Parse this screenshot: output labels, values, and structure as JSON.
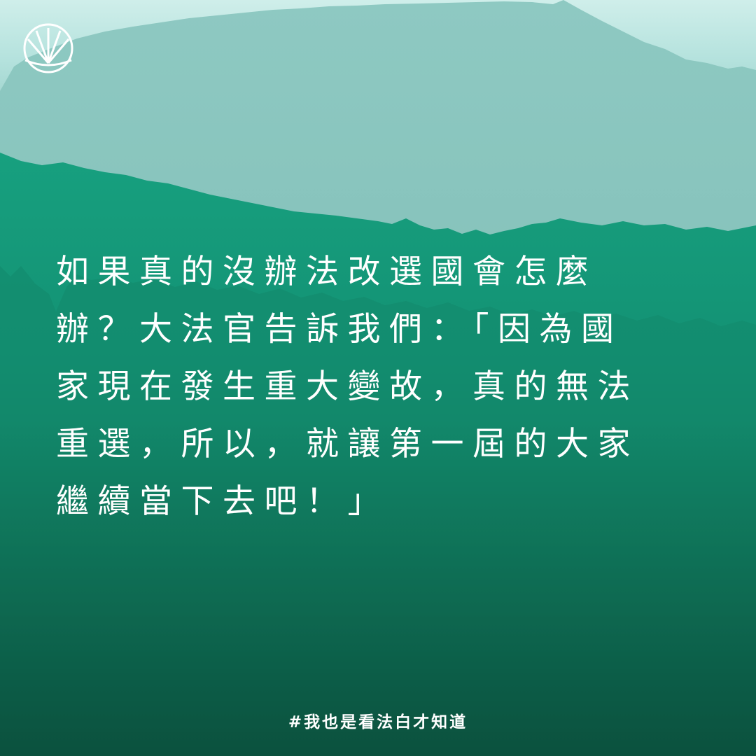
{
  "brand": {
    "logo_icon": "sun-rays-logo-icon"
  },
  "colors": {
    "sky": "#cfeeea",
    "back_mountain": "#7fbdb6",
    "mid_water": "#159a7c",
    "deep_green": "#0c4d37",
    "text": "#ffffff"
  },
  "main_text": {
    "lines": [
      "如果真的沒辦法改選國會怎麼",
      "辦？大法官告訴我們：「因為國",
      "家現在發生重大變故，真的無法",
      "重選，所以，就讓第一屆的大家",
      "繼續當下去吧！」"
    ]
  },
  "hashtag": "#我也是看法白才知道"
}
